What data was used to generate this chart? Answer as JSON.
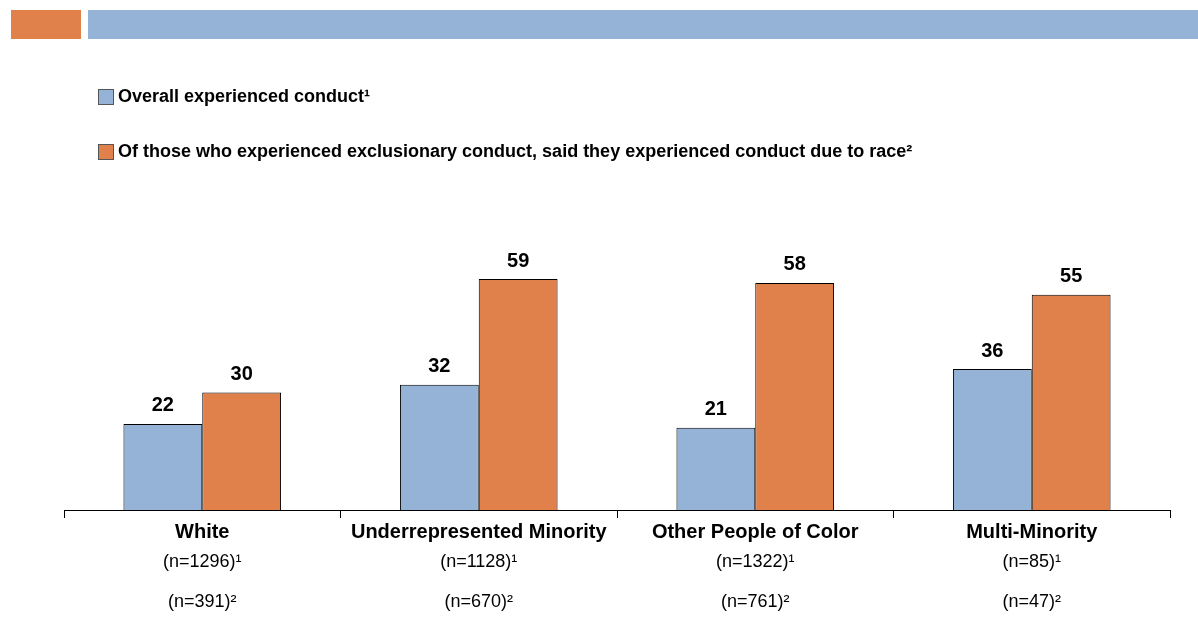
{
  "chart_data": {
    "type": "bar",
    "categories": [
      "White",
      "Underrepresented Minority",
      "Other People of Color",
      "Multi-Minority"
    ],
    "series": [
      {
        "name": "Overall experienced conduct¹",
        "color": "#95b3d7",
        "values": [
          22,
          32,
          21,
          36
        ]
      },
      {
        "name": "Of those who experienced exclusionary conduct, said they experienced conduct due to race²",
        "color": "#e0804a",
        "values": [
          30,
          59,
          58,
          55
        ]
      }
    ],
    "data_labels": true,
    "legend": "top left",
    "grid": false,
    "annotations": [
      "(n=1296)¹",
      "(n=1128)¹",
      "(n=1322)¹",
      "(n=85)¹",
      "(n=391)²",
      "(n=670)²",
      "(n=761)²",
      "(n=47)²"
    ]
  }
}
